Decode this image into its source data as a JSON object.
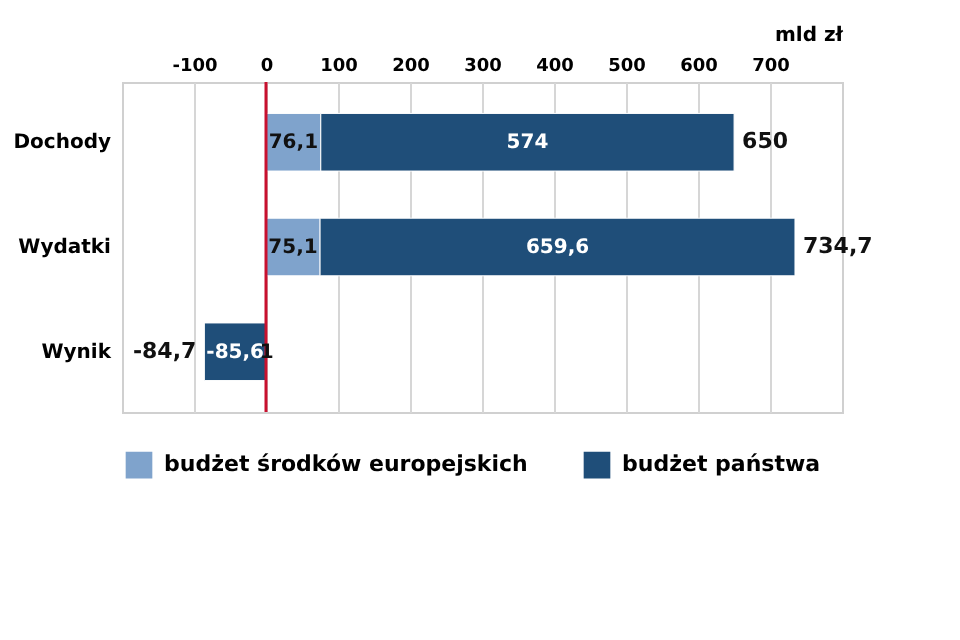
{
  "chart_data": {
    "type": "bar",
    "orientation": "horizontal",
    "stacked": true,
    "xlabel": "mld zł",
    "categories": [
      "Dochody",
      "Wydatki",
      "Wynik"
    ],
    "series": [
      {
        "name": "budżet środków europejskich",
        "color": "#7fa3cc",
        "values": [
          76.1,
          75.1,
          1
        ],
        "value_labels": [
          "76,1",
          "75,1",
          "1"
        ]
      },
      {
        "name": "budżet państwa",
        "color": "#1f4e79",
        "values": [
          574,
          659.6,
          -85.6
        ],
        "value_labels": [
          "574",
          "659,6",
          "-85,6"
        ]
      }
    ],
    "totals": [
      "650",
      "734,7",
      "-84,7"
    ],
    "xlim": [
      -200,
      800
    ],
    "xticks": [
      -100,
      0,
      100,
      200,
      300,
      400,
      500,
      600,
      700
    ],
    "ref_lines": [
      {
        "axis": "x",
        "value": 0,
        "color": "#c8102e"
      }
    ],
    "grid": "x",
    "legend": "bottom"
  }
}
